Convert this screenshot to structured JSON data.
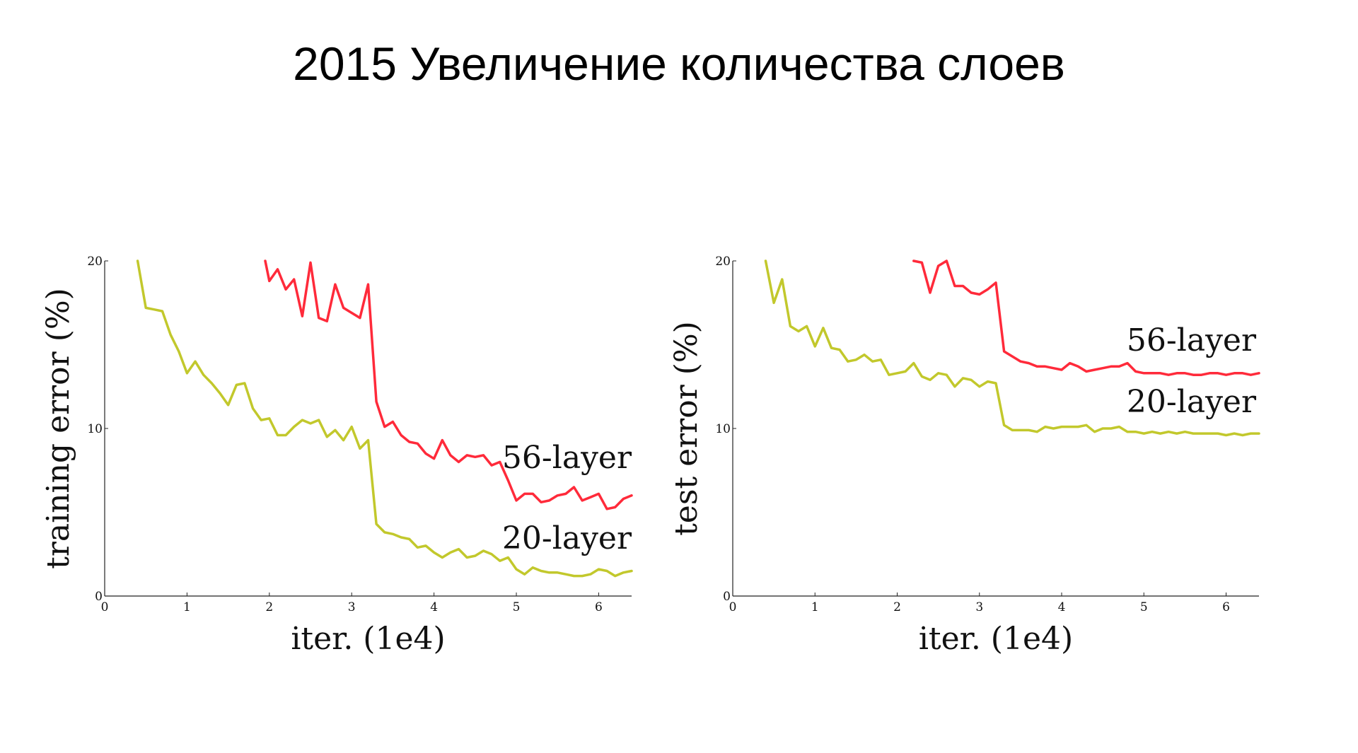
{
  "slide": {
    "title": "2015 Увеличение количества слоев"
  },
  "chart_data": [
    {
      "type": "line",
      "xlabel": "iter. (1e4)",
      "ylabel": "training error (%)",
      "xlim": [
        0,
        6.4
      ],
      "ylim": [
        0,
        20
      ],
      "xticks": [
        "0",
        "1",
        "2",
        "3",
        "4",
        "5",
        "6"
      ],
      "yticks": [
        "0",
        "10",
        "20"
      ],
      "series": [
        {
          "name": "56-layer",
          "color": "#ff2a3a",
          "x": [
            1.95,
            2.0,
            2.1,
            2.2,
            2.3,
            2.4,
            2.5,
            2.6,
            2.7,
            2.8,
            2.9,
            3.0,
            3.1,
            3.2,
            3.3,
            3.4,
            3.5,
            3.6,
            3.7,
            3.8,
            3.9,
            4.0,
            4.1,
            4.2,
            4.3,
            4.4,
            4.5,
            4.6,
            4.7,
            4.8,
            4.9,
            5.0,
            5.1,
            5.2,
            5.3,
            5.4,
            5.5,
            5.6,
            5.7,
            5.8,
            5.9,
            6.0,
            6.1,
            6.2,
            6.3,
            6.4
          ],
          "values": [
            20.0,
            18.8,
            19.5,
            18.3,
            18.9,
            16.7,
            19.9,
            16.6,
            16.4,
            18.6,
            17.2,
            16.9,
            16.6,
            18.6,
            11.6,
            10.1,
            10.4,
            9.6,
            9.2,
            9.1,
            8.5,
            8.2,
            9.3,
            8.4,
            8.0,
            8.4,
            8.3,
            8.4,
            7.8,
            8.0,
            6.9,
            5.7,
            6.1,
            6.1,
            5.6,
            5.7,
            6.0,
            6.1,
            6.5,
            5.7,
            5.9,
            6.1,
            5.2,
            5.3,
            5.8,
            6.0
          ]
        },
        {
          "name": "20-layer",
          "color": "#c2c82c",
          "x": [
            0.4,
            0.5,
            0.6,
            0.7,
            0.8,
            0.9,
            1.0,
            1.1,
            1.2,
            1.3,
            1.4,
            1.5,
            1.6,
            1.7,
            1.8,
            1.9,
            2.0,
            2.1,
            2.2,
            2.3,
            2.4,
            2.5,
            2.6,
            2.7,
            2.8,
            2.9,
            3.0,
            3.1,
            3.2,
            3.3,
            3.4,
            3.5,
            3.6,
            3.7,
            3.8,
            3.9,
            4.0,
            4.1,
            4.2,
            4.3,
            4.4,
            4.5,
            4.6,
            4.7,
            4.8,
            4.9,
            5.0,
            5.1,
            5.2,
            5.3,
            5.4,
            5.5,
            5.6,
            5.7,
            5.8,
            5.9,
            6.0,
            6.1,
            6.2,
            6.3,
            6.4
          ],
          "values": [
            20.0,
            17.2,
            17.1,
            17.0,
            15.6,
            14.6,
            13.3,
            14.0,
            13.2,
            12.7,
            12.1,
            11.4,
            12.6,
            12.7,
            11.2,
            10.5,
            10.6,
            9.6,
            9.6,
            10.1,
            10.5,
            10.3,
            10.5,
            9.5,
            9.9,
            9.3,
            10.1,
            8.8,
            9.3,
            4.3,
            3.8,
            3.7,
            3.5,
            3.4,
            2.9,
            3.0,
            2.6,
            2.3,
            2.6,
            2.8,
            2.3,
            2.4,
            2.7,
            2.5,
            2.1,
            2.3,
            1.6,
            1.3,
            1.7,
            1.5,
            1.4,
            1.4,
            1.3,
            1.2,
            1.2,
            1.3,
            1.6,
            1.5,
            1.2,
            1.4,
            1.5
          ]
        }
      ]
    },
    {
      "type": "line",
      "xlabel": "iter. (1e4)",
      "ylabel": "test error (%)",
      "xlim": [
        0,
        6.4
      ],
      "ylim": [
        0,
        20
      ],
      "xticks": [
        "0",
        "1",
        "2",
        "3",
        "4",
        "5",
        "6"
      ],
      "yticks": [
        "0",
        "10",
        "20"
      ],
      "series": [
        {
          "name": "56-layer",
          "color": "#ff2a3a",
          "x": [
            2.2,
            2.3,
            2.4,
            2.5,
            2.6,
            2.7,
            2.8,
            2.9,
            3.0,
            3.1,
            3.2,
            3.3,
            3.4,
            3.5,
            3.6,
            3.7,
            3.8,
            3.9,
            4.0,
            4.1,
            4.2,
            4.3,
            4.4,
            4.5,
            4.6,
            4.7,
            4.8,
            4.9,
            5.0,
            5.1,
            5.2,
            5.3,
            5.4,
            5.5,
            5.6,
            5.7,
            5.8,
            5.9,
            6.0,
            6.1,
            6.2,
            6.3,
            6.4
          ],
          "values": [
            20.0,
            19.9,
            18.1,
            19.7,
            20.0,
            18.5,
            18.5,
            18.1,
            18.0,
            18.3,
            18.7,
            14.6,
            14.3,
            14.0,
            13.9,
            13.7,
            13.7,
            13.6,
            13.5,
            13.9,
            13.7,
            13.4,
            13.5,
            13.6,
            13.7,
            13.7,
            13.9,
            13.4,
            13.3,
            13.3,
            13.3,
            13.2,
            13.3,
            13.3,
            13.2,
            13.2,
            13.3,
            13.3,
            13.2,
            13.3,
            13.3,
            13.2,
            13.3
          ]
        },
        {
          "name": "20-layer",
          "color": "#c2c82c",
          "x": [
            0.4,
            0.5,
            0.6,
            0.7,
            0.8,
            0.9,
            1.0,
            1.1,
            1.2,
            1.3,
            1.4,
            1.5,
            1.6,
            1.7,
            1.8,
            1.9,
            2.0,
            2.1,
            2.2,
            2.3,
            2.4,
            2.5,
            2.6,
            2.7,
            2.8,
            2.9,
            3.0,
            3.1,
            3.2,
            3.3,
            3.4,
            3.5,
            3.6,
            3.7,
            3.8,
            3.9,
            4.0,
            4.1,
            4.2,
            4.3,
            4.4,
            4.5,
            4.6,
            4.7,
            4.8,
            4.9,
            5.0,
            5.1,
            5.2,
            5.3,
            5.4,
            5.5,
            5.6,
            5.7,
            5.8,
            5.9,
            6.0,
            6.1,
            6.2,
            6.3,
            6.4
          ],
          "values": [
            20.0,
            17.5,
            18.9,
            16.1,
            15.8,
            16.1,
            14.9,
            16.0,
            14.8,
            14.7,
            14.0,
            14.1,
            14.4,
            14.0,
            14.1,
            13.2,
            13.3,
            13.4,
            13.9,
            13.1,
            12.9,
            13.3,
            13.2,
            12.5,
            13.0,
            12.9,
            12.5,
            12.8,
            12.7,
            10.2,
            9.9,
            9.9,
            9.9,
            9.8,
            10.1,
            10.0,
            10.1,
            10.1,
            10.1,
            10.2,
            9.8,
            10.0,
            10.0,
            10.1,
            9.8,
            9.8,
            9.7,
            9.8,
            9.7,
            9.8,
            9.7,
            9.8,
            9.7,
            9.7,
            9.7,
            9.7,
            9.6,
            9.7,
            9.6,
            9.7,
            9.7
          ]
        }
      ]
    }
  ]
}
